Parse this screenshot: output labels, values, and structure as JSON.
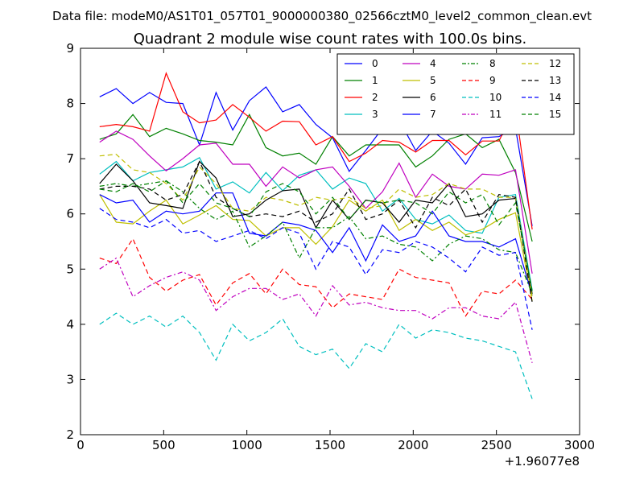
{
  "header": {
    "datafile": "Data file: modeM0/AS1T01_057T01_9000000380_02566cztM0_level2_common_clean.evt"
  },
  "chart_data": {
    "type": "line",
    "title": "Quadrant 2 module wise count rates with 100.0s bins.",
    "xlabel": "",
    "ylabel": "",
    "x_offset_label": "+1.96077e8",
    "xlim": [
      0,
      3000
    ],
    "ylim": [
      2,
      9
    ],
    "xticks": [
      0,
      500,
      1000,
      1500,
      2000,
      2500,
      3000
    ],
    "yticks": [
      2,
      3,
      4,
      5,
      6,
      7,
      8,
      9
    ],
    "xtick_labels": [
      "0",
      "500",
      "1000",
      "1500",
      "2000",
      "2500",
      "3000"
    ],
    "ytick_labels": [
      "2",
      "3",
      "4",
      "5",
      "6",
      "7",
      "8",
      "9"
    ],
    "grid": false,
    "legend_placement": "top-right",
    "x": [
      115,
      215,
      315,
      415,
      515,
      615,
      715,
      815,
      915,
      1015,
      1115,
      1215,
      1315,
      1415,
      1515,
      1615,
      1715,
      1815,
      1915,
      2015,
      2115,
      2215,
      2315,
      2415,
      2515,
      2615,
      2715
    ],
    "series": [
      {
        "name": "0",
        "color": "#0000ff",
        "dash": "solid",
        "values": [
          8.12,
          8.27,
          8.0,
          8.2,
          8.02,
          8.0,
          7.25,
          8.2,
          7.52,
          8.05,
          8.3,
          7.85,
          7.98,
          7.62,
          7.38,
          6.77,
          7.15,
          7.55,
          7.7,
          7.15,
          7.5,
          7.28,
          6.9,
          7.38,
          7.4,
          7.55,
          5.78
        ]
      },
      {
        "name": "1",
        "color": "#008000",
        "dash": "solid",
        "values": [
          7.35,
          7.45,
          7.8,
          7.4,
          7.55,
          7.45,
          7.33,
          7.3,
          7.25,
          7.8,
          7.2,
          7.05,
          7.1,
          6.9,
          7.4,
          7.05,
          7.25,
          7.25,
          7.25,
          6.85,
          7.05,
          7.35,
          7.45,
          7.2,
          7.35,
          6.75,
          5.5
        ]
      },
      {
        "name": "2",
        "color": "#ff0000",
        "dash": "solid",
        "values": [
          7.58,
          7.62,
          7.58,
          7.5,
          8.55,
          7.85,
          7.65,
          7.7,
          7.98,
          7.75,
          7.5,
          7.68,
          7.67,
          7.25,
          7.4,
          6.95,
          7.1,
          7.33,
          7.3,
          7.12,
          7.33,
          7.33,
          7.07,
          7.32,
          7.32,
          7.92,
          5.72
        ]
      },
      {
        "name": "3",
        "color": "#00bfbf",
        "dash": "solid",
        "values": [
          6.72,
          6.95,
          6.6,
          6.75,
          6.8,
          6.85,
          7.02,
          6.45,
          6.58,
          6.38,
          6.75,
          6.42,
          6.7,
          6.8,
          6.45,
          6.65,
          6.55,
          6.05,
          6.28,
          5.9,
          5.82,
          5.98,
          5.7,
          5.65,
          6.3,
          6.35,
          4.62
        ]
      },
      {
        "name": "4",
        "color": "#bf00bf",
        "dash": "solid",
        "values": [
          7.3,
          7.5,
          7.35,
          7.05,
          6.78,
          7.0,
          7.25,
          7.28,
          6.9,
          6.9,
          6.5,
          6.85,
          6.65,
          6.8,
          6.85,
          6.5,
          6.1,
          6.4,
          6.92,
          6.3,
          6.72,
          6.5,
          6.45,
          6.72,
          6.7,
          6.8,
          4.92
        ]
      },
      {
        "name": "5",
        "color": "#bfbf00",
        "dash": "solid",
        "values": [
          6.35,
          5.85,
          5.82,
          6.05,
          6.25,
          5.82,
          5.98,
          6.15,
          5.9,
          5.88,
          5.6,
          5.75,
          5.75,
          5.45,
          5.77,
          6.25,
          6.05,
          6.25,
          5.7,
          5.9,
          5.7,
          5.85,
          5.62,
          5.72,
          5.9,
          6.02,
          4.42
        ]
      },
      {
        "name": "6",
        "color": "#000000",
        "dash": "solid",
        "values": [
          6.55,
          6.9,
          6.6,
          6.2,
          6.15,
          6.1,
          6.95,
          6.65,
          5.95,
          6.0,
          6.25,
          6.42,
          6.45,
          5.75,
          6.25,
          5.9,
          6.25,
          6.2,
          5.85,
          6.25,
          6.2,
          6.55,
          5.95,
          6.0,
          6.25,
          6.28,
          4.55
        ]
      },
      {
        "name": "7",
        "color": "#0000ff",
        "dash": "solid",
        "values": [
          6.35,
          6.2,
          6.25,
          5.85,
          6.05,
          6.0,
          6.05,
          6.38,
          6.38,
          5.65,
          5.6,
          5.85,
          5.8,
          5.7,
          5.3,
          5.75,
          5.15,
          5.8,
          5.5,
          5.6,
          6.05,
          5.6,
          5.5,
          5.5,
          5.4,
          5.55,
          4.52
        ]
      },
      {
        "name": "8",
        "color": "#008000",
        "dash": "dashdot",
        "values": [
          6.5,
          6.55,
          6.5,
          6.55,
          6.6,
          6.4,
          6.1,
          5.9,
          6.05,
          5.4,
          5.6,
          5.85,
          5.2,
          5.75,
          5.75,
          5.95,
          5.55,
          5.6,
          5.45,
          5.4,
          5.15,
          5.45,
          5.6,
          5.55,
          5.35,
          5.3,
          4.55
        ]
      },
      {
        "name": "9",
        "color": "#ff0000",
        "dash": "dashed",
        "values": [
          5.2,
          5.1,
          5.55,
          4.85,
          4.6,
          4.8,
          4.9,
          4.35,
          4.75,
          4.92,
          4.55,
          5.0,
          4.72,
          4.68,
          4.3,
          4.55,
          4.5,
          4.45,
          5.0,
          4.85,
          4.8,
          4.75,
          4.15,
          4.6,
          4.55,
          4.8,
          4.45
        ]
      },
      {
        "name": "10",
        "color": "#00bfbf",
        "dash": "dashed",
        "values": [
          4.0,
          4.2,
          4.0,
          4.15,
          3.95,
          4.15,
          3.85,
          3.35,
          4.0,
          3.7,
          3.85,
          4.1,
          3.6,
          3.45,
          3.55,
          3.2,
          3.65,
          3.5,
          4.0,
          3.75,
          3.9,
          3.85,
          3.75,
          3.7,
          3.6,
          3.5,
          2.65
        ]
      },
      {
        "name": "11",
        "color": "#bf00bf",
        "dash": "dashdot",
        "values": [
          5.0,
          5.2,
          4.5,
          4.7,
          4.85,
          4.95,
          4.8,
          4.25,
          4.5,
          4.65,
          4.65,
          4.45,
          4.55,
          4.15,
          4.7,
          4.35,
          4.4,
          4.3,
          4.25,
          4.25,
          4.1,
          4.3,
          4.3,
          4.15,
          4.1,
          4.4,
          3.3
        ]
      },
      {
        "name": "12",
        "color": "#bfbf00",
        "dash": "dashed",
        "values": [
          7.05,
          7.08,
          6.8,
          6.75,
          6.55,
          6.25,
          6.85,
          6.55,
          6.1,
          6.05,
          6.3,
          6.25,
          6.15,
          6.3,
          6.25,
          6.3,
          6.1,
          6.15,
          6.45,
          6.3,
          6.35,
          6.55,
          6.45,
          6.45,
          6.3,
          6.3,
          4.5
        ]
      },
      {
        "name": "13",
        "color": "#000000",
        "dash": "dashed",
        "values": [
          6.45,
          6.5,
          6.5,
          6.45,
          6.25,
          6.35,
          6.95,
          6.3,
          6.1,
          5.95,
          6.0,
          5.95,
          6.05,
          5.85,
          6.0,
          6.45,
          5.9,
          6.0,
          6.25,
          5.75,
          6.3,
          6.15,
          6.45,
          5.85,
          6.35,
          6.3,
          4.4
        ]
      },
      {
        "name": "14",
        "color": "#0000ff",
        "dash": "dashed",
        "values": [
          6.1,
          5.9,
          5.85,
          5.75,
          5.9,
          5.65,
          5.7,
          5.5,
          5.6,
          5.7,
          5.55,
          5.75,
          5.65,
          5.0,
          5.5,
          5.4,
          4.9,
          5.35,
          5.3,
          5.5,
          5.4,
          5.2,
          4.95,
          5.4,
          5.25,
          5.3,
          3.9
        ]
      },
      {
        "name": "15",
        "color": "#008000",
        "dash": "dashed",
        "values": [
          6.45,
          6.4,
          6.55,
          6.4,
          6.6,
          6.2,
          6.55,
          6.2,
          6.1,
          5.95,
          6.4,
          6.55,
          6.4,
          6.0,
          6.3,
          5.9,
          6.25,
          6.2,
          6.25,
          6.2,
          6.0,
          6.4,
          6.2,
          6.35,
          5.8,
          6.2,
          4.6
        ]
      }
    ]
  }
}
